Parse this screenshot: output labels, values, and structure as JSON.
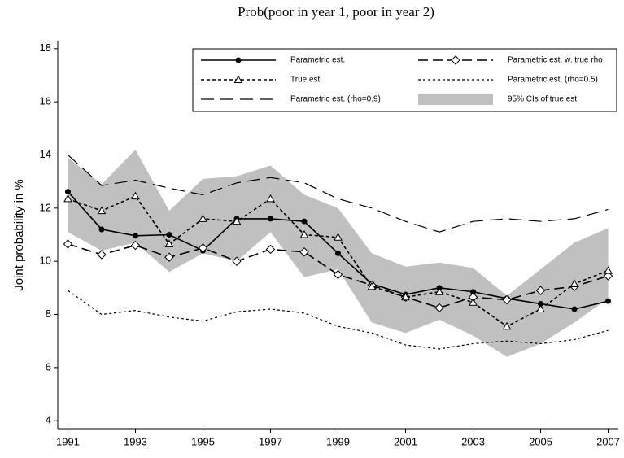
{
  "chart_data": {
    "type": "line",
    "title": "Prob(poor in year 1, poor in year 2)",
    "ylabel": "Joint probability in %",
    "x": [
      1991,
      1992,
      1993,
      1994,
      1995,
      1996,
      1997,
      1998,
      1999,
      2000,
      2001,
      2002,
      2003,
      2004,
      2005,
      2006,
      2007
    ],
    "xlim": [
      1990.7,
      2007.3
    ],
    "xticks": [
      1991,
      1993,
      1995,
      1997,
      1999,
      2001,
      2003,
      2005,
      2007
    ],
    "ylim": [
      3.7,
      18.3
    ],
    "yticks": [
      4,
      6,
      8,
      10,
      12,
      14,
      16,
      18
    ],
    "legend": "top-right",
    "band": {
      "name": "95% CIs of true est.",
      "color": "#c0c0c0",
      "upper": [
        13.9,
        12.9,
        14.2,
        11.9,
        13.1,
        13.2,
        13.6,
        12.5,
        12.0,
        10.3,
        9.8,
        9.95,
        9.75,
        8.7,
        9.7,
        10.7,
        11.25
      ],
      "lower": [
        11.1,
        10.4,
        10.7,
        9.6,
        10.3,
        10.0,
        11.1,
        9.4,
        9.7,
        7.7,
        7.3,
        7.8,
        7.2,
        6.4,
        6.9,
        7.7,
        8.6
      ]
    },
    "series": [
      {
        "name": "Parametric est.",
        "color": "#000000",
        "marker": "circle",
        "dash": "none",
        "values": [
          12.62,
          11.2,
          10.96,
          11.0,
          10.4,
          11.6,
          11.6,
          11.5,
          10.3,
          9.15,
          8.75,
          9.0,
          8.85,
          8.6,
          8.4,
          8.2,
          8.5
        ]
      },
      {
        "name": "Parametric est. w. true rho",
        "color": "#000000",
        "marker": "diamond",
        "dash": "12,6",
        "values": [
          10.65,
          10.25,
          10.6,
          10.15,
          10.5,
          10.0,
          10.45,
          10.35,
          9.5,
          9.1,
          8.65,
          8.25,
          8.65,
          8.55,
          8.9,
          9.05,
          9.45
        ]
      },
      {
        "name": "True est.",
        "color": "#000000",
        "marker": "triangle",
        "dash": "4,3",
        "values": [
          12.35,
          11.9,
          12.45,
          10.65,
          11.6,
          11.5,
          12.35,
          11.0,
          10.9,
          9.05,
          8.65,
          8.85,
          8.45,
          7.55,
          8.2,
          9.15,
          9.65
        ]
      },
      {
        "name": "Parametric est. (rho=0.5)",
        "color": "#000000",
        "marker": "none",
        "dash": "3,3",
        "values": [
          8.9,
          8.0,
          8.15,
          7.9,
          7.75,
          8.1,
          8.2,
          8.05,
          7.55,
          7.3,
          6.85,
          6.7,
          6.9,
          7.0,
          6.9,
          7.05,
          7.4
        ]
      },
      {
        "name": "Parametric est. (rho=0.9)",
        "color": "#000000",
        "marker": "none",
        "dash": "16,8",
        "values": [
          14.0,
          12.85,
          13.05,
          12.75,
          12.5,
          12.95,
          13.15,
          12.95,
          12.35,
          12.0,
          11.5,
          11.1,
          11.5,
          11.6,
          11.5,
          11.6,
          11.95
        ]
      }
    ]
  }
}
